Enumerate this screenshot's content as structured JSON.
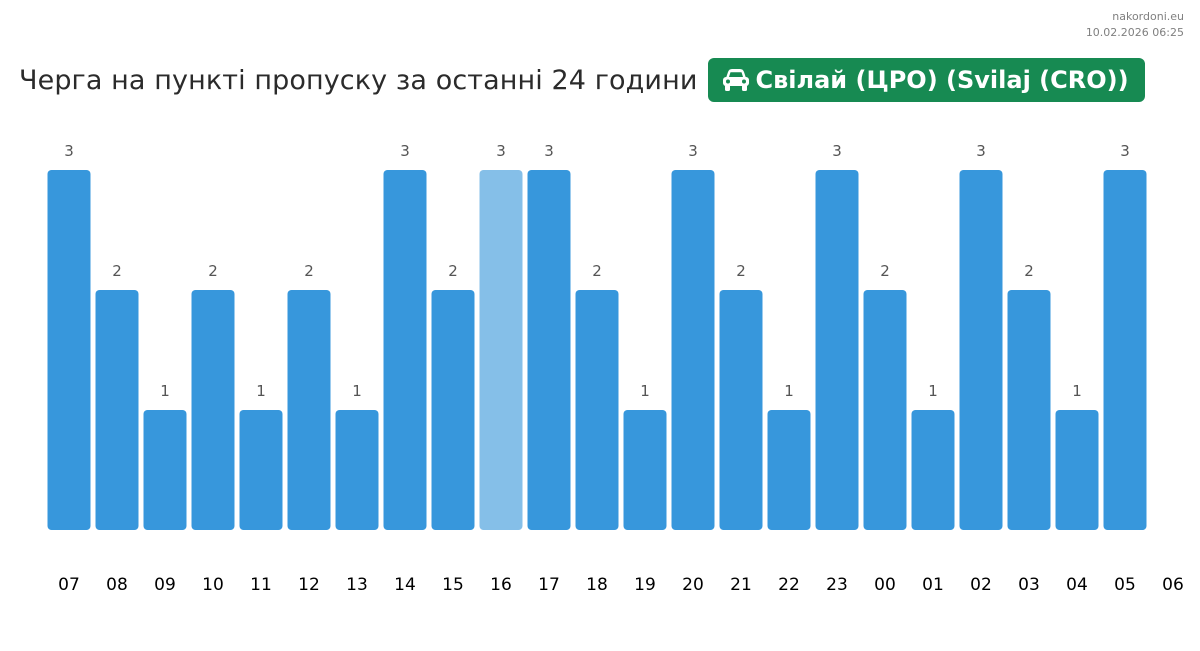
{
  "site": {
    "name": "nakordoni.eu",
    "timestamp": "10.02.2026 06:25"
  },
  "header": {
    "title": "Черга на пункті пропуску за останні 24 години"
  },
  "checkpoint": {
    "label": "Свілай (ЦРО) (Svilaj (CRO))",
    "icon": "car-icon"
  },
  "colors": {
    "bar": "#3797dc",
    "bar_highlight": "#85bfe8",
    "badge": "#178a52"
  },
  "chart_data": {
    "type": "bar",
    "categories": [
      "07",
      "08",
      "09",
      "10",
      "11",
      "12",
      "13",
      "14",
      "15",
      "16",
      "17",
      "18",
      "19",
      "20",
      "21",
      "22",
      "23",
      "00",
      "01",
      "02",
      "03",
      "04",
      "05"
    ],
    "values": [
      3,
      2,
      1,
      2,
      1,
      2,
      1,
      3,
      2,
      3,
      3,
      2,
      1,
      3,
      2,
      1,
      3,
      2,
      1,
      3,
      2,
      1,
      3
    ],
    "x_ticks": [
      "07",
      "08",
      "09",
      "10",
      "11",
      "12",
      "13",
      "14",
      "15",
      "16",
      "17",
      "18",
      "19",
      "20",
      "21",
      "22",
      "23",
      "00",
      "01",
      "02",
      "03",
      "04",
      "05",
      "06"
    ],
    "highlight_category": "16",
    "ylim": [
      0,
      3
    ],
    "title": "Черга на пункті пропуску за останні 24 години",
    "xlabel": "",
    "ylabel": "",
    "grid": false,
    "legend": "none"
  }
}
